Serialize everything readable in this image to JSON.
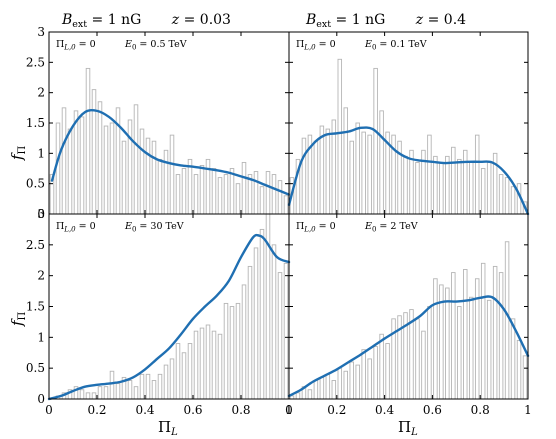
{
  "column_titles": [
    "B_ext = 1 nG      z = 0.03",
    "B_ext = 1 nG      z = 0.4"
  ],
  "ylabel": "f_Π",
  "xlabel": "Π_L",
  "x_ticks": [
    "0",
    "0.2",
    "0.4",
    "0.6",
    "0.8",
    "1"
  ],
  "y_ticks": [
    "0",
    "0.5",
    "1",
    "1.5",
    "2",
    "2.5",
    "3"
  ],
  "curve_color": "#1f6fb2",
  "hist_edge_color": "#b5b5b5",
  "chart_data": [
    {
      "type": "bar",
      "panel": "top-left",
      "annotation_left": "Π_L,0 = 0",
      "annotation_right": "E_0 = 0.5 TeV",
      "xlim": [
        0,
        1
      ],
      "ylim": [
        0,
        3
      ],
      "bin_width": 0.025,
      "histogram": [
        0.65,
        1.5,
        1.75,
        1.4,
        1.7,
        1.6,
        2.4,
        2.05,
        1.85,
        1.45,
        1.5,
        1.75,
        1.2,
        1.55,
        1.8,
        1.4,
        1.25,
        1.2,
        0.9,
        1.05,
        1.3,
        0.65,
        0.75,
        0.9,
        0.65,
        0.8,
        0.9,
        0.75,
        0.6,
        0.65,
        0.75,
        0.5,
        0.85,
        0.65,
        0.7,
        0.45,
        0.7,
        0.65,
        0.55,
        0.3
      ],
      "curve": {
        "x": [
          0.0125,
          0.05,
          0.1,
          0.15,
          0.2,
          0.25,
          0.3,
          0.35,
          0.4,
          0.45,
          0.5,
          0.55,
          0.6,
          0.65,
          0.7,
          0.75,
          0.8,
          0.85,
          0.9,
          0.95,
          1.0
        ],
        "y": [
          0.55,
          1.05,
          1.45,
          1.68,
          1.7,
          1.6,
          1.42,
          1.2,
          1.02,
          0.9,
          0.84,
          0.8,
          0.78,
          0.75,
          0.72,
          0.68,
          0.62,
          0.56,
          0.48,
          0.4,
          0.32
        ]
      }
    },
    {
      "type": "bar",
      "panel": "top-right",
      "annotation_left": "Π_L,0 = 0",
      "annotation_right": "E_0 = 0.1 TeV",
      "xlim": [
        0,
        1
      ],
      "ylim": [
        0,
        3
      ],
      "bin_width": 0.025,
      "histogram": [
        0.6,
        0.9,
        1.25,
        1.3,
        1.2,
        1.45,
        1.4,
        1.55,
        2.55,
        1.75,
        1.2,
        1.5,
        1.35,
        1.3,
        2.4,
        1.7,
        1.35,
        1.3,
        1.2,
        0.95,
        1.05,
        0.85,
        1.05,
        1.3,
        0.95,
        0.85,
        0.95,
        1.1,
        0.9,
        1.05,
        0.85,
        1.3,
        0.75,
        0.85,
        1.0,
        0.65,
        0.6,
        0.45,
        0.5,
        0.2
      ],
      "curve": {
        "x": [
          0.0,
          0.05,
          0.1,
          0.15,
          0.2,
          0.25,
          0.3,
          0.35,
          0.4,
          0.45,
          0.5,
          0.55,
          0.6,
          0.65,
          0.7,
          0.75,
          0.8,
          0.85,
          0.9,
          0.95,
          1.0
        ],
        "y": [
          0.15,
          0.85,
          1.15,
          1.3,
          1.33,
          1.36,
          1.42,
          1.4,
          1.22,
          1.03,
          0.92,
          0.88,
          0.86,
          0.84,
          0.85,
          0.86,
          0.86,
          0.85,
          0.7,
          0.42,
          0.0
        ]
      }
    },
    {
      "type": "bar",
      "panel": "bottom-left",
      "annotation_left": "Π_L,0 = 0",
      "annotation_right": "E_0 = 30 TeV",
      "xlim": [
        0,
        1
      ],
      "ylim": [
        0,
        3
      ],
      "bin_width": 0.025,
      "histogram": [
        0.0,
        0.05,
        0.1,
        0.15,
        0.2,
        0.15,
        0.1,
        0.1,
        0.2,
        0.2,
        0.45,
        0.25,
        0.35,
        0.3,
        0.2,
        0.4,
        0.4,
        0.3,
        0.4,
        0.55,
        0.65,
        0.9,
        0.75,
        0.9,
        1.1,
        1.15,
        1.2,
        1.1,
        1.05,
        1.55,
        1.5,
        1.55,
        1.85,
        2.15,
        2.45,
        2.75,
        3.0,
        2.5,
        2.05,
        2.2
      ],
      "curve": {
        "x": [
          0.0,
          0.05,
          0.1,
          0.15,
          0.2,
          0.25,
          0.3,
          0.35,
          0.4,
          0.45,
          0.5,
          0.55,
          0.6,
          0.65,
          0.7,
          0.75,
          0.8,
          0.85,
          0.875,
          0.9,
          0.95,
          1.0
        ],
        "y": [
          0.0,
          0.05,
          0.13,
          0.2,
          0.23,
          0.25,
          0.28,
          0.35,
          0.48,
          0.65,
          0.82,
          1.05,
          1.3,
          1.5,
          1.68,
          1.92,
          2.3,
          2.62,
          2.65,
          2.58,
          2.3,
          2.22
        ]
      }
    },
    {
      "type": "bar",
      "panel": "bottom-right",
      "annotation_left": "Π_L,0 = 0",
      "annotation_right": "E_0 = 2 TeV",
      "xlim": [
        0,
        1
      ],
      "ylim": [
        0,
        3
      ],
      "bin_width": 0.025,
      "histogram": [
        0.05,
        0.1,
        0.2,
        0.15,
        0.3,
        0.35,
        0.4,
        0.3,
        0.5,
        0.45,
        0.6,
        0.55,
        0.8,
        0.65,
        0.85,
        1.05,
        0.9,
        1.3,
        1.35,
        1.4,
        1.45,
        1.3,
        1.1,
        1.5,
        1.95,
        1.85,
        1.8,
        2.05,
        1.5,
        2.1,
        1.65,
        1.95,
        2.2,
        1.6,
        2.15,
        2.05,
        2.55,
        1.3,
        0.95,
        0.7
      ],
      "curve": {
        "x": [
          0.0,
          0.05,
          0.1,
          0.15,
          0.2,
          0.25,
          0.3,
          0.35,
          0.4,
          0.45,
          0.5,
          0.55,
          0.6,
          0.65,
          0.7,
          0.75,
          0.8,
          0.85,
          0.9,
          0.95,
          1.0
        ],
        "y": [
          0.05,
          0.15,
          0.28,
          0.38,
          0.48,
          0.6,
          0.72,
          0.85,
          0.98,
          1.1,
          1.22,
          1.35,
          1.52,
          1.58,
          1.58,
          1.6,
          1.64,
          1.65,
          1.45,
          1.1,
          0.7
        ]
      }
    }
  ]
}
